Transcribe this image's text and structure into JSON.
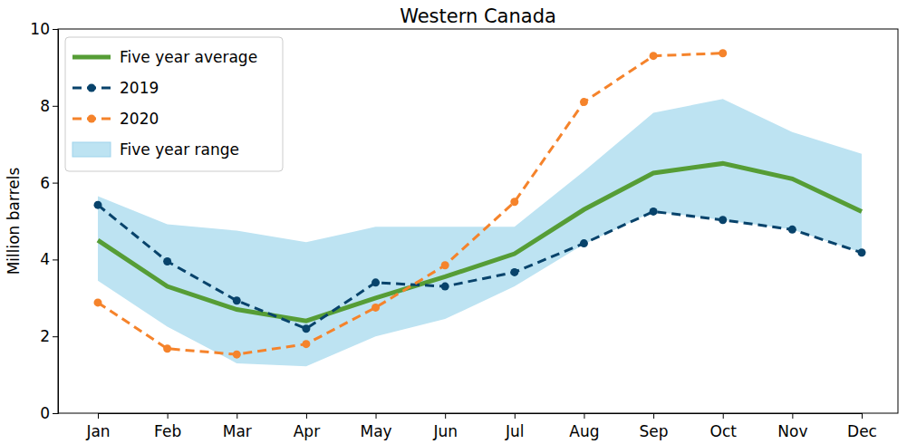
{
  "chart_data": {
    "type": "line",
    "title": "Western Canada",
    "y_label": "Million barrels",
    "categories": [
      "Jan",
      "Feb",
      "Mar",
      "Apr",
      "May",
      "Jun",
      "Jul",
      "Aug",
      "Sep",
      "Oct",
      "Nov",
      "Dec"
    ],
    "series": [
      {
        "name": "Five year average",
        "color": "#569d36",
        "type": "line",
        "line_style": "solid",
        "marker": "none",
        "values": [
          4.5,
          3.3,
          2.7,
          2.4,
          3.0,
          3.55,
          4.15,
          5.3,
          6.25,
          6.5,
          6.1,
          5.25
        ]
      },
      {
        "name": "2019",
        "color": "#08436b",
        "type": "line",
        "line_style": "dashed",
        "marker": "circle",
        "values": [
          5.42,
          3.95,
          2.93,
          2.2,
          3.4,
          3.3,
          3.67,
          4.42,
          5.25,
          5.03,
          4.78,
          4.18
        ]
      },
      {
        "name": "2020",
        "color": "#f5832b",
        "type": "line",
        "line_style": "dashed",
        "marker": "circle",
        "values": [
          2.88,
          1.68,
          1.53,
          1.8,
          2.75,
          3.85,
          5.5,
          8.1,
          9.3,
          9.37,
          null,
          null
        ]
      },
      {
        "name": "Five year range",
        "color": "#bde3f2",
        "type": "area",
        "values": [
          5.65,
          4.92,
          4.75,
          4.45,
          4.85,
          4.85,
          4.85,
          6.3,
          7.82,
          8.18,
          7.32,
          6.75
        ],
        "lower": [
          3.45,
          2.25,
          1.3,
          1.22,
          2.0,
          2.45,
          3.3,
          4.4,
          5.25,
          5.03,
          4.78,
          4.18
        ]
      }
    ],
    "ylim": [
      0,
      10
    ],
    "yticks": [
      0,
      2,
      4,
      6,
      8,
      10
    ],
    "grid": false,
    "legend": "upper left"
  }
}
